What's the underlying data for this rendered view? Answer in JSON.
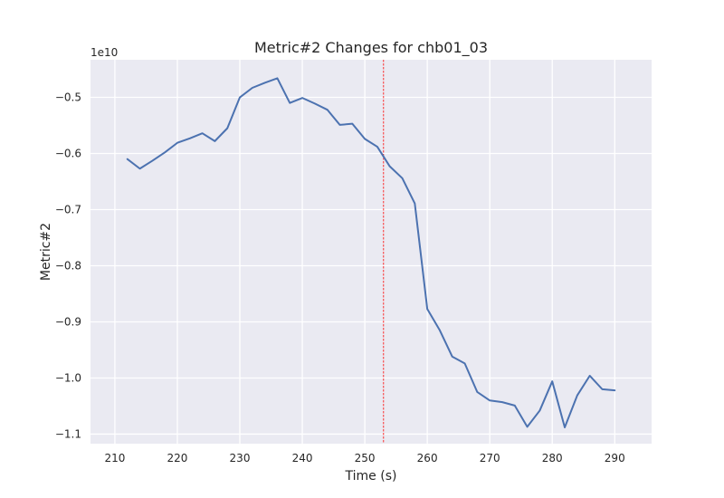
{
  "chart_data": {
    "type": "line",
    "title": "Metric#2 Changes for chb01_03",
    "xlabel": "Time (s)",
    "ylabel": "Metric#2",
    "y_offset_label": "1e10",
    "xlim": [
      206.1,
      295.9
    ],
    "ylim": [
      -1.117,
      -0.433
    ],
    "x_ticks": [
      210,
      220,
      230,
      240,
      250,
      260,
      270,
      280,
      290
    ],
    "x_tick_labels": [
      "210",
      "220",
      "230",
      "240",
      "250",
      "260",
      "270",
      "280",
      "290"
    ],
    "y_ticks": [
      -1.1,
      -1.0,
      -0.9,
      -0.8,
      -0.7,
      -0.6,
      -0.5
    ],
    "y_tick_labels": [
      "−1.1",
      "−1.0",
      "−0.9",
      "−0.8",
      "−0.7",
      "−0.6",
      "−0.5"
    ],
    "grid": true,
    "background": "#eaeaf2",
    "series": [
      {
        "color": "#4c72b0",
        "x": [
          212,
          214,
          216,
          218,
          220,
          222,
          224,
          226,
          228,
          230,
          232,
          234,
          236,
          238,
          240,
          242,
          244,
          246,
          248,
          250,
          252,
          254,
          256,
          258,
          260,
          262,
          264,
          266,
          268,
          270,
          272,
          274,
          276,
          278,
          280,
          282,
          284,
          286,
          288,
          290
        ],
        "y": [
          -0.61,
          -0.627,
          -0.613,
          -0.598,
          -0.581,
          -0.573,
          -0.564,
          -0.578,
          -0.555,
          -0.5,
          -0.483,
          -0.474,
          -0.466,
          -0.51,
          -0.501,
          -0.511,
          -0.522,
          -0.549,
          -0.547,
          -0.574,
          -0.588,
          -0.623,
          -0.644,
          -0.689,
          -0.877,
          -0.915,
          -0.962,
          -0.974,
          -1.025,
          -1.04,
          -1.043,
          -1.049,
          -1.087,
          -1.058,
          -1.006,
          -1.088,
          -1.031,
          -0.996,
          -1.02,
          -1.022
        ]
      }
    ],
    "vline": {
      "x": 253,
      "color": "#ff0000",
      "style": "dashed"
    }
  }
}
